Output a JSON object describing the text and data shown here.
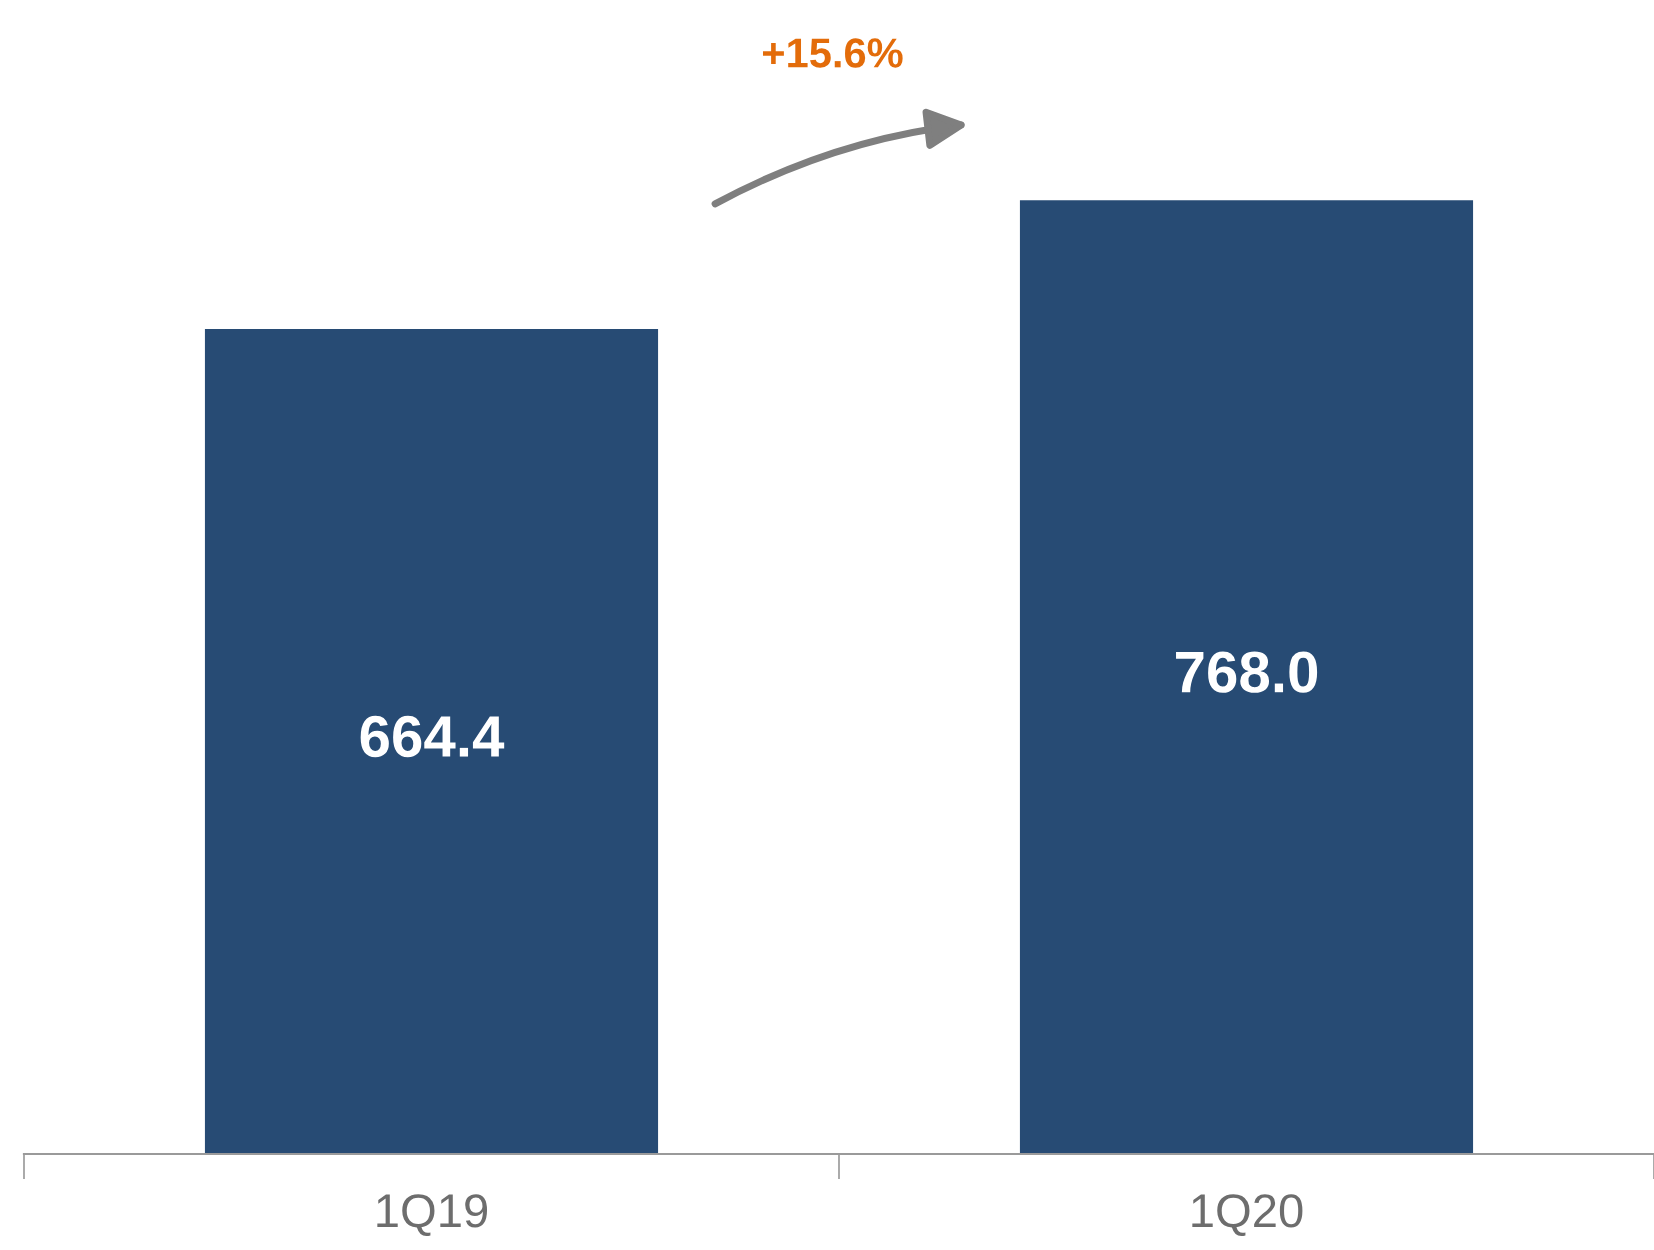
{
  "chart_data": {
    "type": "bar",
    "categories": [
      "1Q19",
      "1Q20"
    ],
    "values": [
      664.4,
      768.0
    ],
    "color": "#274b74",
    "value_labels": [
      "664.4",
      "768.0"
    ],
    "annotations": [
      "+15.6%"
    ]
  }
}
